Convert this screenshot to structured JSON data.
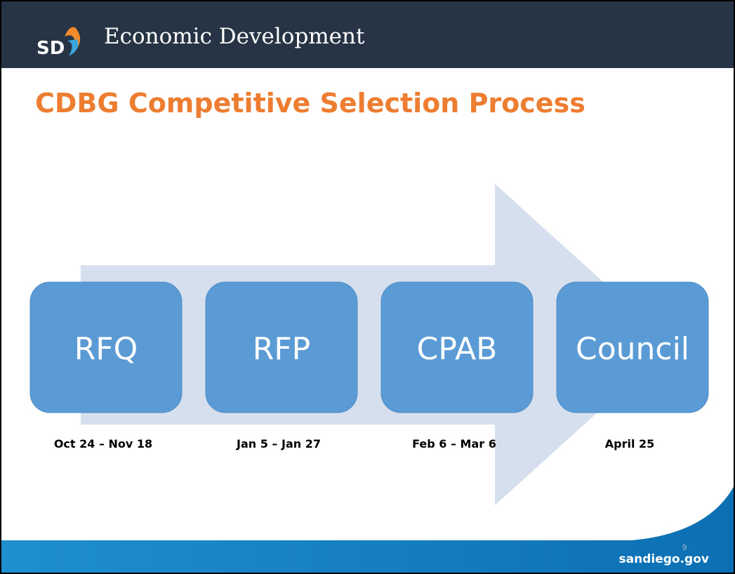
{
  "header": {
    "logo": "SD",
    "title": "Economic Development"
  },
  "title": "CDBG Competitive Selection Process",
  "steps": [
    {
      "label": "RFQ",
      "dates": "Oct 24 – Nov 18"
    },
    {
      "label": "RFP",
      "dates": "Jan 5 – Jan 27"
    },
    {
      "label": "CPAB",
      "dates": "Feb 6 – Mar 6"
    },
    {
      "label": "Council",
      "dates": "April 25"
    }
  ],
  "footer": {
    "page_number": "9",
    "site": "sandiego.gov"
  }
}
